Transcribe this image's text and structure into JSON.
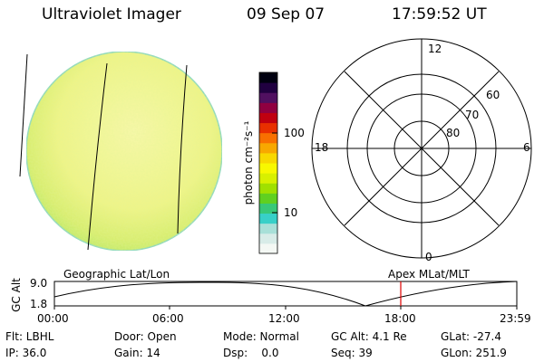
{
  "header": {
    "title": "Ultraviolet Imager",
    "date": "09 Sep 07",
    "time": "17:59:52 UT"
  },
  "colorbar": {
    "unit_label": "photon cm⁻²s⁻¹",
    "tick_high": "100",
    "tick_low": "10",
    "colors": [
      "#f4f8f4",
      "#d8ece8",
      "#a8e0d8",
      "#38d0c8",
      "#38c878",
      "#60d020",
      "#a0e000",
      "#d8f000",
      "#f8f800",
      "#f8d800",
      "#f8a800",
      "#f87000",
      "#e83000",
      "#c00010",
      "#900040",
      "#501060",
      "#200040",
      "#000010"
    ]
  },
  "polar_plot": {
    "label_top": "12",
    "label_left": "18",
    "label_right": "6",
    "label_bottom": "0",
    "ring_labels": [
      "60",
      "70",
      "80"
    ]
  },
  "altitude_plot": {
    "ylabel": "GC Alt",
    "y_max_label": "9.0",
    "y_min_label": "1.8",
    "left_title": "Geographic Lat/Lon",
    "right_title": "Apex MLat/MLT",
    "x_ticks": [
      "00:00",
      "06:00",
      "12:00",
      "18:00",
      "23:59"
    ],
    "current_time_marker": "17:59:52",
    "line_color": "#000000",
    "marker_color": "#e00000"
  },
  "info": {
    "row1": {
      "filter": "Flt: LBHL",
      "door": "Door: Open",
      "mode": "Mode: Normal",
      "gc_alt": "GC Alt: 4.1 Re",
      "glat": "GLat: -27.4"
    },
    "row2": {
      "ip": "IP: 36.0",
      "gain": "Gain: 14",
      "dsp": "Dsp:    0.0",
      "seq": "Seq: 39",
      "glon": "GLon: 251.9"
    }
  }
}
